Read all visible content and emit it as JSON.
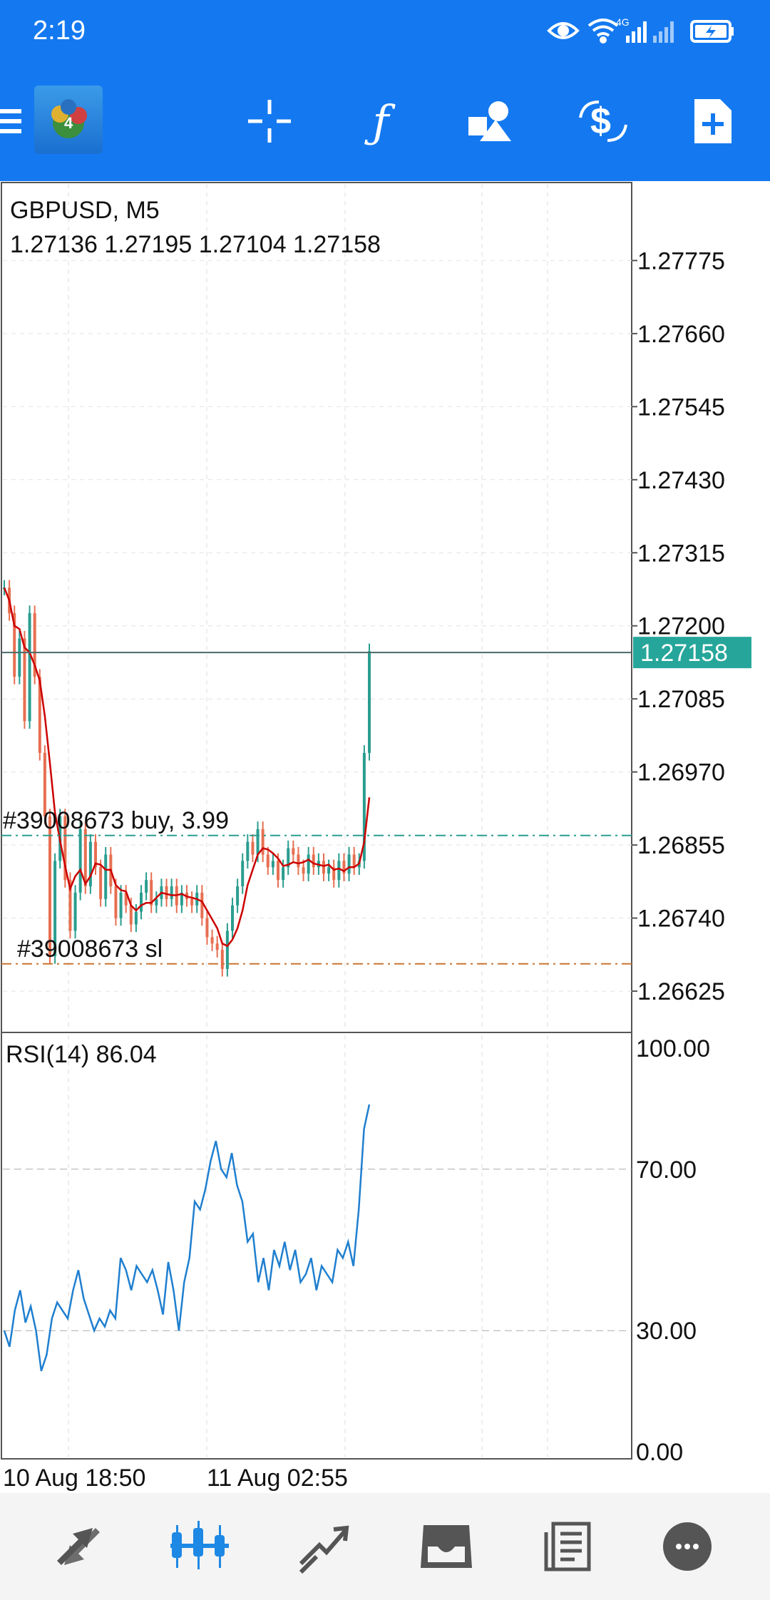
{
  "status_bar": {
    "time": "2:19",
    "icons": [
      "eye-icon",
      "wifi-icon",
      "signal-4g-icon",
      "signal-icon",
      "battery-icon"
    ],
    "network_label": "4G"
  },
  "toolbar": {
    "icons": [
      "menu-icon",
      "app-logo-icon",
      "crosshair-icon",
      "indicators-icon",
      "objects-icon",
      "trade-icon",
      "new-order-icon"
    ],
    "indicator_glyph": "ƒ",
    "logo_badge": "4"
  },
  "chart": {
    "symbol_timeframe": "GBPUSD, M5",
    "ohlc": "1.27136 1.27195 1.27104 1.27158",
    "price_labels": [
      "1.27775",
      "1.27660",
      "1.27545",
      "1.27430",
      "1.27315",
      "1.27200",
      "1.27085",
      "1.26970",
      "1.26855",
      "1.26740",
      "1.26625"
    ],
    "current_price": "1.27158",
    "order_buy_label": "#39008673 buy, 3.99",
    "order_sl_label": "#39008673 sl",
    "rsi_label": "RSI(14) 86.04",
    "rsi_levels": [
      "100.00",
      "70.00",
      "30.00",
      "0.00"
    ],
    "time_labels": [
      "10 Aug 18:50",
      "11 Aug 02:55"
    ],
    "colors": {
      "bull": "#2a9d8f",
      "bear": "#e76f51",
      "ma": "#cc0000",
      "rsi": "#1f7fcf",
      "price_tag": "#26a69a",
      "buy_line": "#2a9d8f",
      "sl_line": "#c87533"
    }
  },
  "chart_data": {
    "type": "candlestick",
    "symbol": "GBPUSD",
    "timeframe": "M5",
    "ylim": [
      1.2656,
      1.279
    ],
    "current_price": 1.27158,
    "buy_order_price": 1.2687,
    "stop_loss_price": 1.26668,
    "close_series": [
      1.2726,
      1.2722,
      1.2712,
      1.2718,
      1.2705,
      1.2722,
      1.2712,
      1.27,
      1.269,
      1.2668,
      1.2683,
      1.269,
      1.268,
      1.2672,
      1.2678,
      1.2688,
      1.2679,
      1.2686,
      1.2682,
      1.2677,
      1.2684,
      1.2679,
      1.2674,
      1.2678,
      1.2676,
      1.2673,
      1.2675,
      1.2678,
      1.268,
      1.2676,
      1.2677,
      1.2679,
      1.2677,
      1.2679,
      1.2676,
      1.2678,
      1.2677,
      1.2676,
      1.2678,
      1.2674,
      1.2671,
      1.267,
      1.2669,
      1.2666,
      1.2672,
      1.2676,
      1.2679,
      1.2683,
      1.2686,
      1.2684,
      1.2688,
      1.2684,
      1.2682,
      1.2683,
      1.268,
      1.2682,
      1.2685,
      1.2684,
      1.2682,
      1.2681,
      1.2684,
      1.2682,
      1.2683,
      1.2681,
      1.2682,
      1.268,
      1.2683,
      1.2681,
      1.2684,
      1.2682,
      1.2683,
      1.27,
      1.2716
    ],
    "rsi": {
      "ylim": [
        0,
        100
      ],
      "levels": [
        70,
        30
      ],
      "current": 86.04,
      "values": [
        30,
        26,
        35,
        40,
        32,
        36,
        30,
        20,
        24,
        33,
        37,
        35,
        33,
        40,
        45,
        38,
        34,
        30,
        33,
        31,
        35,
        33,
        48,
        45,
        40,
        46,
        44,
        42,
        45,
        40,
        34,
        47,
        40,
        30,
        42,
        48,
        62,
        60,
        65,
        72,
        77,
        70,
        68,
        74,
        66,
        62,
        52,
        54,
        42,
        48,
        40,
        50,
        46,
        52,
        45,
        50,
        42,
        44,
        48,
        40,
        46,
        44,
        42,
        50,
        48,
        52,
        46,
        60,
        80,
        86.04
      ]
    }
  }
}
